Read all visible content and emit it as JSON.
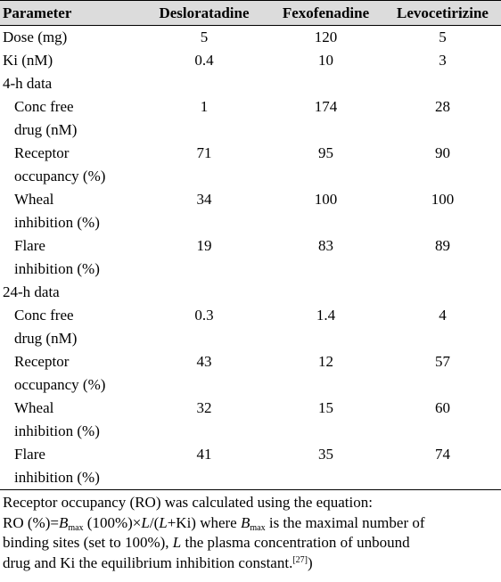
{
  "table": {
    "headers": [
      "Parameter",
      "Desloratadine",
      "Fexofenadine",
      "Levocetirizine"
    ],
    "rows": [
      {
        "label": "Dose (mg)",
        "values": [
          "5",
          "120",
          "5"
        ]
      },
      {
        "label": "Ki (nM)",
        "values": [
          "0.4",
          "10",
          "3"
        ]
      },
      {
        "section": "4-h data"
      },
      {
        "label_lines": [
          "Conc free",
          "drug (nM)"
        ],
        "values": [
          "1",
          "174",
          "28"
        ]
      },
      {
        "label_lines": [
          "Receptor",
          "occupancy (%)"
        ],
        "values": [
          "71",
          "95",
          "90"
        ]
      },
      {
        "label_lines": [
          "Wheal",
          "inhibition (%)"
        ],
        "values": [
          "34",
          "100",
          "100"
        ]
      },
      {
        "label_lines": [
          "Flare",
          "inhibition (%)"
        ],
        "values": [
          "19",
          "83",
          "89"
        ]
      },
      {
        "section": "24-h data"
      },
      {
        "label_lines": [
          "Conc free",
          "drug (nM)"
        ],
        "values": [
          "0.3",
          "1.4",
          "4"
        ]
      },
      {
        "label_lines": [
          "Receptor",
          "occupancy (%)"
        ],
        "values": [
          "43",
          "12",
          "57"
        ]
      },
      {
        "label_lines": [
          "Wheal",
          "inhibition (%)"
        ],
        "values": [
          "32",
          "15",
          "60"
        ]
      },
      {
        "label_lines": [
          "Flare",
          "inhibition (%)"
        ],
        "values": [
          "41",
          "35",
          "74"
        ]
      }
    ]
  },
  "footnote": {
    "line1": "Receptor occupancy (RO) was calculated using the equation:",
    "eq_prefix": "RO (%)=",
    "B": "B",
    "max_sub": "max",
    "eq_mid": " (100%)×",
    "L": "L",
    "eq_mid2": "/(",
    "eq_mid3": "+Ki) where ",
    "eq_tail": " is the maximal number of",
    "line3a": "binding sites (set to 100%), ",
    "line3b": " the plasma concentration of unbound",
    "line4": "drug and Ki the equilibrium inhibition constant.",
    "ref": "[27]",
    "close": ")"
  }
}
